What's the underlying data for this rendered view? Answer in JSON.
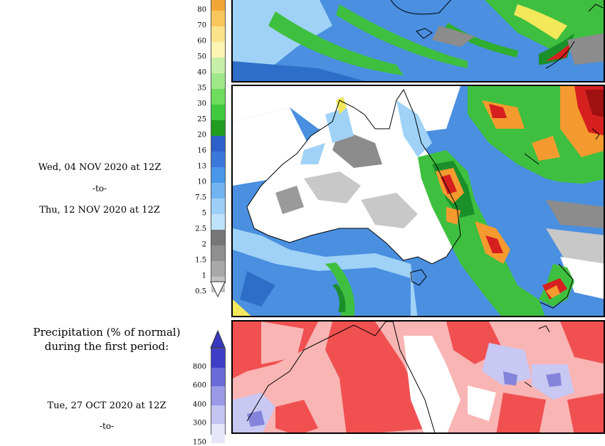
{
  "second_period": {
    "start": "Wed, 04 NOV 2020 at 12Z",
    "separator": "-to-",
    "end": "Thu, 12 NOV 2020 at 12Z"
  },
  "anomaly_section": {
    "title_line1": "Precipitation (% of normal)",
    "title_line2": "during the first period:",
    "start": "Tue, 27 OCT 2020 at 12Z",
    "separator": "-to-"
  },
  "precip_scale": {
    "ticks": [
      "80",
      "70",
      "60",
      "50",
      "40",
      "35",
      "30",
      "25",
      "20",
      "16",
      "13",
      "10",
      "7.5",
      "5",
      "2.5",
      "2",
      "1.5",
      "1",
      "0.5"
    ],
    "colors": [
      "#f2a636",
      "#f8c65c",
      "#fbe38c",
      "#fdf4b4",
      "#c6f0a8",
      "#9ee88a",
      "#6edc5c",
      "#3fc93f",
      "#1f9e1f",
      "#2f5fc8",
      "#3a78dc",
      "#4a96ea",
      "#72b4f2",
      "#9ccff6",
      "#bfe3fa",
      "#777777",
      "#8f8f8f",
      "#a8a8a8",
      "#c2c2c2"
    ]
  },
  "percent_scale": {
    "ticks": [
      "800",
      "600",
      "400",
      "300",
      "150"
    ],
    "colors": [
      "#3e3ec8",
      "#6a6ad8",
      "#9a9ae6",
      "#c4c4f0",
      "#e6e6fa"
    ]
  },
  "colors": {
    "ocean_blue": "#4a8fe0",
    "light_blue": "#9fd2f6",
    "green": "#3fbf3f",
    "dark_green": "#1b8f2a",
    "yellow": "#f3e85a",
    "orange": "#f59a2e",
    "red": "#d62020",
    "dark_red": "#a01010",
    "grey": "#8c8c8c",
    "light_grey": "#c8c8c8",
    "anomaly_red": "#f05050",
    "anomaly_pink": "#f9b4b4",
    "anomaly_lavender": "#c8c8f2",
    "anomaly_blue": "#8484dc"
  }
}
